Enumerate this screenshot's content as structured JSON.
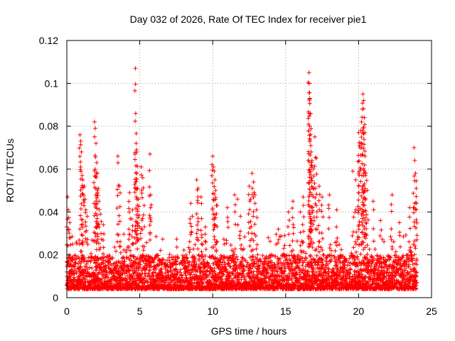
{
  "chart_data": {
    "type": "scatter",
    "title": "Day 032 of 2026, Rate Of TEC Index for receiver pie1",
    "xlabel": "GPS time / hours",
    "ylabel": "ROTI / TECUs",
    "xlim": [
      0,
      25
    ],
    "ylim": [
      0,
      0.12
    ],
    "x_ticks": [
      0,
      5,
      10,
      15,
      20,
      25
    ],
    "x_tick_labels": [
      "0",
      "5",
      "10",
      "15",
      "20",
      "25"
    ],
    "y_ticks": [
      0,
      0.02,
      0.04,
      0.06,
      0.08,
      0.1,
      0.12
    ],
    "y_tick_labels": [
      "0",
      "0.02",
      "0.04",
      "0.06",
      "0.08",
      "0.1",
      "0.12"
    ],
    "grid": true,
    "marker": "+",
    "series": [
      {
        "name": "ROTI",
        "color": "#ff0000",
        "baseline": {
          "description": "dense cloud of points at every time step, roughly 0.004 to 0.02 TECU",
          "x_range": [
            0,
            24
          ],
          "y_range": [
            0.004,
            0.02
          ]
        },
        "points": [
          [
            0.05,
            0.047
          ],
          [
            0.1,
            0.041
          ],
          [
            0.2,
            0.035
          ],
          [
            0.25,
            0.028
          ],
          [
            0.4,
            0.025
          ],
          [
            0.9,
            0.076
          ],
          [
            0.95,
            0.073
          ],
          [
            1.0,
            0.068
          ],
          [
            1.05,
            0.057
          ],
          [
            1.1,
            0.055
          ],
          [
            1.2,
            0.052
          ],
          [
            1.25,
            0.046
          ],
          [
            1.3,
            0.041
          ],
          [
            1.4,
            0.038
          ],
          [
            1.9,
            0.082
          ],
          [
            1.95,
            0.079
          ],
          [
            2.0,
            0.072
          ],
          [
            2.05,
            0.063
          ],
          [
            2.1,
            0.058
          ],
          [
            2.15,
            0.051
          ],
          [
            2.2,
            0.045
          ],
          [
            2.3,
            0.039
          ],
          [
            2.5,
            0.034
          ],
          [
            3.5,
            0.066
          ],
          [
            3.6,
            0.052
          ],
          [
            4.3,
            0.049
          ],
          [
            4.5,
            0.041
          ],
          [
            4.7,
            0.107
          ],
          [
            4.72,
            0.086
          ],
          [
            4.75,
            0.072
          ],
          [
            4.78,
            0.069
          ],
          [
            4.8,
            0.058
          ],
          [
            4.85,
            0.051
          ],
          [
            4.9,
            0.046
          ],
          [
            5.1,
            0.061
          ],
          [
            5.2,
            0.056
          ],
          [
            5.3,
            0.043
          ],
          [
            5.7,
            0.067
          ],
          [
            5.75,
            0.048
          ],
          [
            8.5,
            0.044
          ],
          [
            8.6,
            0.038
          ],
          [
            8.9,
            0.055
          ],
          [
            9.0,
            0.051
          ],
          [
            9.2,
            0.047
          ],
          [
            9.5,
            0.033
          ],
          [
            10.0,
            0.066
          ],
          [
            10.05,
            0.061
          ],
          [
            10.1,
            0.059
          ],
          [
            10.15,
            0.055
          ],
          [
            10.2,
            0.05
          ],
          [
            10.3,
            0.043
          ],
          [
            11.0,
            0.042
          ],
          [
            11.5,
            0.048
          ],
          [
            11.7,
            0.046
          ],
          [
            11.9,
            0.038
          ],
          [
            12.5,
            0.052
          ],
          [
            12.6,
            0.046
          ],
          [
            12.7,
            0.058
          ],
          [
            12.8,
            0.054
          ],
          [
            12.9,
            0.048
          ],
          [
            13.0,
            0.041
          ],
          [
            14.5,
            0.032
          ],
          [
            15.2,
            0.04
          ],
          [
            15.5,
            0.045
          ],
          [
            16.0,
            0.04
          ],
          [
            16.2,
            0.047
          ],
          [
            16.6,
            0.105
          ],
          [
            16.62,
            0.1
          ],
          [
            16.65,
            0.093
          ],
          [
            16.7,
            0.086
          ],
          [
            16.72,
            0.071
          ],
          [
            16.75,
            0.068
          ],
          [
            16.8,
            0.064
          ],
          [
            16.9,
            0.06
          ],
          [
            17.0,
            0.075
          ],
          [
            17.1,
            0.065
          ],
          [
            17.3,
            0.052
          ],
          [
            17.5,
            0.047
          ],
          [
            18.0,
            0.048
          ],
          [
            18.5,
            0.041
          ],
          [
            19.6,
            0.059
          ],
          [
            19.8,
            0.055
          ],
          [
            20.0,
            0.077
          ],
          [
            20.05,
            0.071
          ],
          [
            20.1,
            0.07
          ],
          [
            20.2,
            0.082
          ],
          [
            20.25,
            0.088
          ],
          [
            20.3,
            0.095
          ],
          [
            20.35,
            0.092
          ],
          [
            20.4,
            0.084
          ],
          [
            20.45,
            0.066
          ],
          [
            20.5,
            0.058
          ],
          [
            20.6,
            0.05
          ],
          [
            21.0,
            0.045
          ],
          [
            21.5,
            0.036
          ],
          [
            22.3,
            0.048
          ],
          [
            22.8,
            0.035
          ],
          [
            23.5,
            0.042
          ],
          [
            23.8,
            0.07
          ],
          [
            23.85,
            0.064
          ],
          [
            23.9,
            0.058
          ],
          [
            23.95,
            0.051
          ]
        ]
      }
    ]
  }
}
